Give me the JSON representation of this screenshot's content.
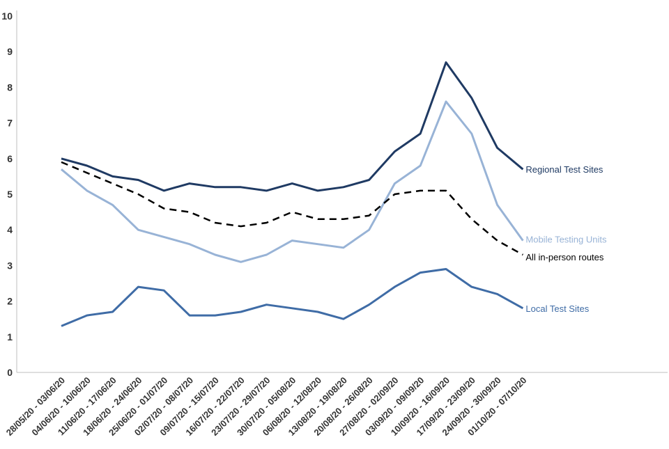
{
  "chart_data": {
    "type": "line",
    "title": "",
    "xlabel": "",
    "ylabel": "",
    "ylim": [
      0,
      10
    ],
    "yticks": [
      0,
      1,
      2,
      3,
      4,
      5,
      6,
      7,
      8,
      9,
      10
    ],
    "grid": false,
    "legend": "end-of-line labels",
    "categories": [
      "28/05/20 - 03/06/20",
      "04/06/20 - 10/06/20",
      "11/06/20 - 17/06/20",
      "18/06/20 - 24/06/20",
      "25/06/20 - 01/07/20",
      "02/07/20 - 08/07/20",
      "09/07/20 - 15/07/20",
      "16/07/20 - 22/07/20",
      "23/07/20 - 29/07/20",
      "30/07/20 - 05/08/20",
      "06/08/20 - 12/08/20",
      "13/08/20 - 19/08/20",
      "20/08/20 - 26/08/20",
      "27/08/20 - 02/09/20",
      "03/09/20 - 09/09/20",
      "10/09/20 - 16/09/20",
      "17/09/20 - 23/09/20",
      "24/09/20 - 30/09/20",
      "01/10/20 - 07/10/20"
    ],
    "series": [
      {
        "name": "Regional Test Sites",
        "color": "#1f3a63",
        "dashed": false,
        "values": [
          6.0,
          5.8,
          5.5,
          5.4,
          5.1,
          5.3,
          5.2,
          5.2,
          5.1,
          5.3,
          5.1,
          5.2,
          5.4,
          6.2,
          6.7,
          8.7,
          7.7,
          6.3,
          5.7
        ]
      },
      {
        "name": "Mobile Testing Units",
        "color": "#98b3d6",
        "dashed": false,
        "values": [
          5.7,
          5.1,
          4.7,
          4.0,
          3.8,
          3.6,
          3.3,
          3.1,
          3.3,
          3.7,
          3.6,
          3.5,
          4.0,
          5.3,
          5.8,
          7.6,
          6.7,
          4.7,
          3.7
        ]
      },
      {
        "name": "All in-person routes",
        "color": "#000000",
        "dashed": true,
        "values": [
          5.9,
          5.6,
          5.3,
          5.0,
          4.6,
          4.5,
          4.2,
          4.1,
          4.2,
          4.5,
          4.3,
          4.3,
          4.4,
          5.0,
          5.1,
          5.1,
          4.3,
          3.7,
          3.3
        ]
      },
      {
        "name": "Local Test Sites",
        "color": "#3f6ca6",
        "dashed": false,
        "values": [
          1.3,
          1.6,
          1.7,
          2.4,
          2.3,
          1.6,
          1.6,
          1.7,
          1.9,
          1.8,
          1.7,
          1.5,
          1.9,
          2.4,
          2.8,
          2.9,
          2.4,
          2.2,
          1.8
        ]
      }
    ]
  }
}
